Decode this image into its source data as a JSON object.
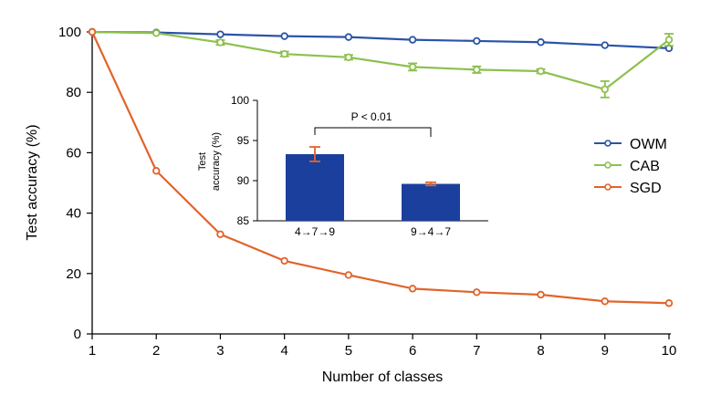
{
  "chart_data": [
    {
      "type": "line",
      "title": "",
      "xlabel": "Number of classes",
      "ylabel": "Test accuracy (%)",
      "xlim": [
        1,
        10
      ],
      "ylim": [
        0,
        100
      ],
      "x": [
        1,
        2,
        3,
        4,
        5,
        6,
        7,
        8,
        9,
        10
      ],
      "xticks": [
        1,
        2,
        3,
        4,
        5,
        6,
        7,
        8,
        9,
        10
      ],
      "yticks": [
        0,
        20,
        40,
        60,
        80,
        100
      ],
      "legend_position": "right",
      "grid": false,
      "series": [
        {
          "name": "OWM",
          "color": "#2a54a8",
          "values": [
            100,
            99.8,
            99.2,
            98.6,
            98.3,
            97.4,
            97.0,
            96.6,
            95.6,
            94.6
          ],
          "errors": [
            0,
            0.2,
            0.3,
            0.3,
            0.3,
            0.4,
            0.4,
            0.4,
            0.4,
            0.5
          ]
        },
        {
          "name": "CAB",
          "color": "#8dc04e",
          "values": [
            100,
            99.6,
            96.5,
            92.7,
            91.6,
            88.4,
            87.5,
            87.0,
            81.0,
            97.4
          ],
          "errors": [
            0,
            0.5,
            0.8,
            0.8,
            0.8,
            1.2,
            1.1,
            0.7,
            2.7,
            2.0
          ]
        },
        {
          "name": "SGD",
          "color": "#e2632a",
          "values": [
            100,
            54.0,
            33.0,
            24.2,
            19.5,
            15.0,
            13.8,
            13.0,
            10.8,
            10.2
          ],
          "errors": [
            0,
            0.3,
            0.3,
            0.3,
            0.3,
            0.3,
            0.3,
            0.3,
            0.3,
            0.3
          ]
        }
      ]
    },
    {
      "type": "bar",
      "title": "",
      "xlabel": "",
      "ylabel": "Test accuracy (%)",
      "ylim": [
        85,
        100
      ],
      "yticks": [
        85,
        90,
        95,
        100
      ],
      "categories": [
        "4→7→9",
        "9→4→7"
      ],
      "values": [
        93.3,
        89.6
      ],
      "errors": [
        0.9,
        0.2
      ],
      "bar_color": "#1b3f9d",
      "error_color": "#e2632a",
      "annotation": "P < 0.01"
    }
  ]
}
